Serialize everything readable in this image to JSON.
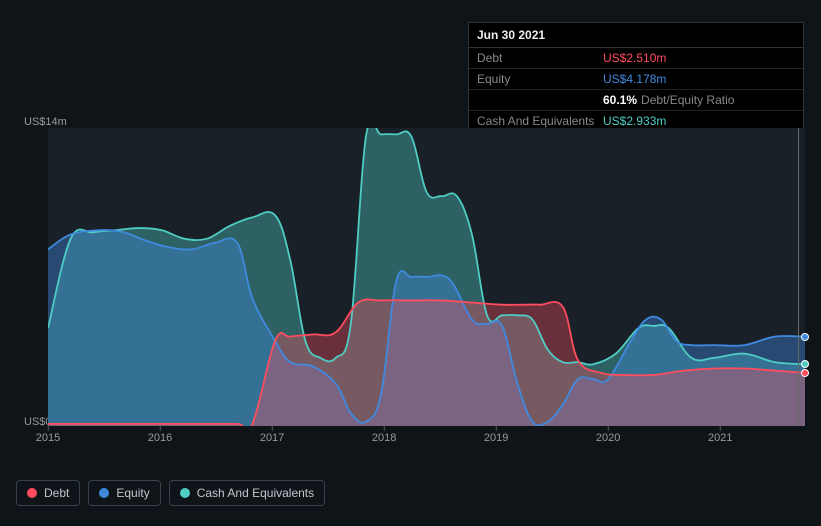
{
  "colors": {
    "debt": "#ff4d5e",
    "equity": "#3f8ae0",
    "cash": "#4ecdc4",
    "debt_fill": "rgba(255,77,94,0.35)",
    "equity_fill": "rgba(63,138,224,0.40)",
    "cash_fill": "rgba(78,205,196,0.38)",
    "bg": "#0f1419",
    "plot_bg": "#1a2028"
  },
  "tooltip": {
    "date": "Jun 30 2021",
    "rows": [
      {
        "label": "Debt",
        "value": "US$2.510m",
        "cls": "val-red"
      },
      {
        "label": "Equity",
        "value": "US$4.178m",
        "cls": "val-blue"
      },
      {
        "label": "",
        "ratio_pct": "60.1%",
        "ratio_label": "Debt/Equity Ratio"
      },
      {
        "label": "Cash And Equivalents",
        "value": "US$2.933m",
        "cls": "val-teal"
      }
    ]
  },
  "y_axis": {
    "top": "US$14m",
    "bottom": "US$0",
    "min": 0,
    "max": 14
  },
  "x_axis": {
    "ticks": [
      {
        "label": "2015",
        "pos": 0.0
      },
      {
        "label": "2016",
        "pos": 0.148
      },
      {
        "label": "2017",
        "pos": 0.296
      },
      {
        "label": "2018",
        "pos": 0.444
      },
      {
        "label": "2019",
        "pos": 0.592
      },
      {
        "label": "2020",
        "pos": 0.74
      },
      {
        "label": "2021",
        "pos": 0.888
      }
    ]
  },
  "series": {
    "debt": {
      "label": "Debt",
      "points": [
        [
          0.0,
          0.1
        ],
        [
          0.05,
          0.1
        ],
        [
          0.1,
          0.1
        ],
        [
          0.15,
          0.1
        ],
        [
          0.2,
          0.1
        ],
        [
          0.25,
          0.1
        ],
        [
          0.27,
          0.1
        ],
        [
          0.3,
          4.0
        ],
        [
          0.32,
          4.2
        ],
        [
          0.35,
          4.3
        ],
        [
          0.38,
          4.4
        ],
        [
          0.41,
          5.8
        ],
        [
          0.44,
          5.9
        ],
        [
          0.48,
          5.9
        ],
        [
          0.52,
          5.9
        ],
        [
          0.56,
          5.8
        ],
        [
          0.6,
          5.7
        ],
        [
          0.63,
          5.7
        ],
        [
          0.65,
          5.7
        ],
        [
          0.68,
          5.6
        ],
        [
          0.7,
          3.1
        ],
        [
          0.73,
          2.5
        ],
        [
          0.76,
          2.4
        ],
        [
          0.8,
          2.4
        ],
        [
          0.84,
          2.6
        ],
        [
          0.88,
          2.7
        ],
        [
          0.92,
          2.7
        ],
        [
          0.96,
          2.6
        ],
        [
          1.0,
          2.5
        ]
      ]
    },
    "equity": {
      "label": "Equity",
      "points": [
        [
          0.0,
          8.3
        ],
        [
          0.03,
          9.0
        ],
        [
          0.07,
          9.2
        ],
        [
          0.1,
          9.1
        ],
        [
          0.13,
          8.7
        ],
        [
          0.16,
          8.4
        ],
        [
          0.19,
          8.3
        ],
        [
          0.22,
          8.6
        ],
        [
          0.25,
          8.6
        ],
        [
          0.27,
          6.0
        ],
        [
          0.3,
          4.0
        ],
        [
          0.32,
          3.0
        ],
        [
          0.35,
          2.8
        ],
        [
          0.38,
          2.0
        ],
        [
          0.4,
          0.6
        ],
        [
          0.42,
          0.2
        ],
        [
          0.44,
          1.5
        ],
        [
          0.46,
          6.8
        ],
        [
          0.48,
          7.0
        ],
        [
          0.5,
          7.0
        ],
        [
          0.53,
          6.9
        ],
        [
          0.56,
          5.0
        ],
        [
          0.58,
          4.8
        ],
        [
          0.6,
          4.7
        ],
        [
          0.62,
          2.0
        ],
        [
          0.64,
          0.2
        ],
        [
          0.66,
          0.2
        ],
        [
          0.68,
          1.0
        ],
        [
          0.7,
          2.2
        ],
        [
          0.72,
          2.2
        ],
        [
          0.74,
          2.2
        ],
        [
          0.77,
          4.0
        ],
        [
          0.79,
          5.0
        ],
        [
          0.81,
          5.0
        ],
        [
          0.83,
          4.0
        ],
        [
          0.85,
          3.8
        ],
        [
          0.88,
          3.8
        ],
        [
          0.92,
          3.8
        ],
        [
          0.96,
          4.2
        ],
        [
          1.0,
          4.2
        ]
      ]
    },
    "cash": {
      "label": "Cash And Equivalents",
      "points": [
        [
          0.0,
          4.6
        ],
        [
          0.03,
          8.8
        ],
        [
          0.06,
          9.1
        ],
        [
          0.09,
          9.2
        ],
        [
          0.12,
          9.3
        ],
        [
          0.15,
          9.2
        ],
        [
          0.18,
          8.8
        ],
        [
          0.21,
          8.8
        ],
        [
          0.24,
          9.4
        ],
        [
          0.27,
          9.8
        ],
        [
          0.3,
          9.9
        ],
        [
          0.32,
          7.8
        ],
        [
          0.34,
          4.0
        ],
        [
          0.36,
          3.2
        ],
        [
          0.38,
          3.2
        ],
        [
          0.4,
          4.8
        ],
        [
          0.42,
          13.6
        ],
        [
          0.44,
          13.7
        ],
        [
          0.46,
          13.7
        ],
        [
          0.48,
          13.6
        ],
        [
          0.5,
          11.0
        ],
        [
          0.52,
          10.8
        ],
        [
          0.54,
          10.8
        ],
        [
          0.56,
          9.0
        ],
        [
          0.58,
          5.2
        ],
        [
          0.6,
          5.2
        ],
        [
          0.62,
          5.2
        ],
        [
          0.64,
          5.0
        ],
        [
          0.66,
          3.6
        ],
        [
          0.68,
          3.0
        ],
        [
          0.7,
          3.0
        ],
        [
          0.72,
          2.9
        ],
        [
          0.75,
          3.4
        ],
        [
          0.78,
          4.6
        ],
        [
          0.8,
          4.7
        ],
        [
          0.82,
          4.6
        ],
        [
          0.85,
          3.2
        ],
        [
          0.88,
          3.2
        ],
        [
          0.92,
          3.4
        ],
        [
          0.96,
          3.0
        ],
        [
          1.0,
          2.9
        ]
      ]
    }
  },
  "markers": [
    {
      "cls": "equity",
      "x": 1.0,
      "y": 4.2
    },
    {
      "cls": "cash",
      "x": 1.0,
      "y": 2.9
    },
    {
      "cls": "debt",
      "x": 1.0,
      "y": 2.5
    }
  ],
  "legend": [
    {
      "key": "debt",
      "label": "Debt"
    },
    {
      "key": "equity",
      "label": "Equity"
    },
    {
      "key": "cash",
      "label": "Cash And Equivalents"
    }
  ]
}
